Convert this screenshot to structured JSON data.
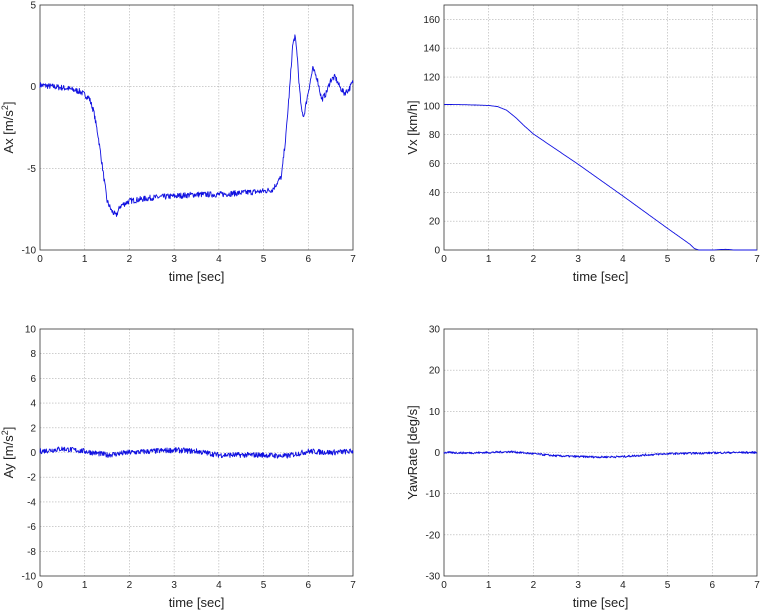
{
  "chart_data": [
    {
      "type": "line",
      "id": "ax",
      "title": "",
      "xlabel": "time [sec]",
      "ylabel": "Ax [m/s²]",
      "ylabel_main": "Ax [m/s",
      "ylabel_sup": "2",
      "ylabel_end": "]",
      "xlim": [
        0,
        7
      ],
      "ylim": [
        -10,
        5
      ],
      "xticks": [
        "0",
        "1",
        "2",
        "3",
        "4",
        "5",
        "6",
        "7"
      ],
      "yticks": [
        "5",
        "0",
        "-5",
        "-10"
      ],
      "series": [
        {
          "name": "Ax",
          "color": "#1010e0",
          "x": [
            0,
            0.3,
            0.6,
            0.9,
            1.1,
            1.2,
            1.3,
            1.4,
            1.5,
            1.6,
            1.7,
            1.8,
            2.0,
            2.5,
            3.0,
            3.5,
            4.0,
            4.5,
            5.0,
            5.2,
            5.4,
            5.5,
            5.6,
            5.65,
            5.7,
            5.75,
            5.8,
            5.85,
            5.9,
            6.0,
            6.1,
            6.2,
            6.3,
            6.4,
            6.5,
            6.6,
            6.7,
            6.8,
            6.9,
            7.0
          ],
          "y": [
            0.1,
            0.0,
            -0.1,
            -0.3,
            -0.7,
            -1.5,
            -3.0,
            -5.0,
            -7.0,
            -7.6,
            -7.9,
            -7.3,
            -7.0,
            -6.8,
            -6.7,
            -6.6,
            -6.6,
            -6.5,
            -6.4,
            -6.3,
            -5.5,
            -3.0,
            0.5,
            2.5,
            3.1,
            2.0,
            0.0,
            -1.5,
            -1.8,
            -0.3,
            1.1,
            0.5,
            -0.8,
            -0.4,
            0.4,
            0.6,
            0.0,
            -0.4,
            -0.2,
            0.3
          ]
        }
      ]
    },
    {
      "type": "line",
      "id": "vx",
      "title": "",
      "xlabel": "time [sec]",
      "ylabel": "Vx [km/h]",
      "xlim": [
        0,
        7
      ],
      "ylim": [
        0,
        170
      ],
      "xticks": [
        "0",
        "1",
        "2",
        "3",
        "4",
        "5",
        "6",
        "7"
      ],
      "yticks": [
        "160",
        "140",
        "120",
        "100",
        "80",
        "60",
        "40",
        "20",
        "0"
      ],
      "series": [
        {
          "name": "Vx",
          "color": "#1010e0",
          "x": [
            0,
            0.5,
            1.0,
            1.2,
            1.4,
            1.6,
            1.8,
            2.0,
            3.0,
            4.0,
            5.0,
            5.5,
            5.6,
            5.7,
            6.0,
            6.3,
            6.5,
            7.0
          ],
          "y": [
            101,
            100.8,
            100.3,
            99.5,
            97,
            92,
            86,
            80.5,
            59.5,
            37.5,
            15.0,
            4.0,
            1.0,
            0,
            0,
            0.5,
            0,
            0
          ]
        }
      ]
    },
    {
      "type": "line",
      "id": "ay",
      "title": "",
      "xlabel": "time [sec]",
      "ylabel": "Ay [m/s²]",
      "ylabel_main": "Ay [m/s",
      "ylabel_sup": "2",
      "ylabel_end": "]",
      "xlim": [
        0,
        7
      ],
      "ylim": [
        -10,
        10
      ],
      "xticks": [
        "0",
        "1",
        "2",
        "3",
        "4",
        "5",
        "6",
        "7"
      ],
      "yticks": [
        "10",
        "8",
        "6",
        "4",
        "2",
        "0",
        "-2",
        "-4",
        "-6",
        "-8",
        "-10"
      ],
      "series": [
        {
          "name": "Ay",
          "color": "#1010e0",
          "x": [
            0,
            0.5,
            1.0,
            1.5,
            2.0,
            2.5,
            3.0,
            3.5,
            4.0,
            4.5,
            5.0,
            5.5,
            6.0,
            6.5,
            7.0
          ],
          "y": [
            0.1,
            0.3,
            0.1,
            -0.2,
            0.0,
            0.1,
            0.2,
            0.1,
            -0.2,
            -0.2,
            -0.2,
            -0.3,
            0.1,
            0.0,
            0.1
          ]
        }
      ]
    },
    {
      "type": "line",
      "id": "yaw",
      "title": "",
      "xlabel": "time [sec]",
      "ylabel": "YawRate [deg/s]",
      "xlim": [
        0,
        7
      ],
      "ylim": [
        -30,
        30
      ],
      "xticks": [
        "0",
        "1",
        "2",
        "3",
        "4",
        "5",
        "6",
        "7"
      ],
      "yticks": [
        "30",
        "20",
        "10",
        "0",
        "-10",
        "-20",
        "-30"
      ],
      "series": [
        {
          "name": "YawRate",
          "color": "#1010e0",
          "x": [
            0,
            0.5,
            1.0,
            1.5,
            2.0,
            2.5,
            3.0,
            3.5,
            4.0,
            4.5,
            5.0,
            5.5,
            6.0,
            6.5,
            7.0
          ],
          "y": [
            0.0,
            -0.1,
            0.0,
            0.2,
            -0.3,
            -0.8,
            -1.0,
            -1.1,
            -1.0,
            -0.6,
            -0.3,
            -0.2,
            -0.1,
            0.0,
            0.0
          ]
        }
      ]
    }
  ]
}
